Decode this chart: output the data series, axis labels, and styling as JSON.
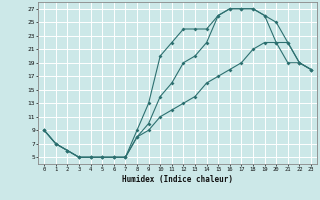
{
  "xlabel": "Humidex (Indice chaleur)",
  "bg_color": "#cce8e8",
  "line_color": "#2d7070",
  "grid_color": "#ffffff",
  "xlim": [
    -0.5,
    23.5
  ],
  "ylim": [
    4.0,
    28.0
  ],
  "xticks": [
    0,
    1,
    2,
    3,
    4,
    5,
    6,
    7,
    8,
    9,
    10,
    11,
    12,
    13,
    14,
    15,
    16,
    17,
    18,
    19,
    20,
    21,
    22,
    23
  ],
  "yticks": [
    5,
    7,
    9,
    11,
    13,
    15,
    17,
    19,
    21,
    23,
    25,
    27
  ],
  "line1_x": [
    0,
    1,
    2,
    3,
    4,
    5,
    6,
    7,
    8,
    9,
    10,
    11,
    12,
    13,
    14,
    15,
    16,
    17,
    18,
    19,
    20,
    21,
    22,
    23
  ],
  "line1_y": [
    9,
    7,
    6,
    5,
    5,
    5,
    5,
    5,
    8,
    10,
    14,
    16,
    19,
    20,
    22,
    26,
    27,
    27,
    27,
    26,
    25,
    22,
    19,
    18
  ],
  "line2_x": [
    0,
    1,
    2,
    3,
    4,
    5,
    6,
    7,
    8,
    9,
    10,
    11,
    12,
    13,
    14,
    15,
    16,
    17,
    18,
    19,
    20,
    21,
    22,
    23
  ],
  "line2_y": [
    9,
    7,
    6,
    5,
    5,
    5,
    5,
    5,
    9,
    13,
    20,
    22,
    24,
    24,
    24,
    26,
    27,
    27,
    27,
    26,
    22,
    19,
    19,
    18
  ],
  "line3_x": [
    0,
    1,
    2,
    3,
    4,
    5,
    6,
    7,
    8,
    9,
    10,
    11,
    12,
    13,
    14,
    15,
    16,
    17,
    18,
    19,
    20,
    21,
    22,
    23
  ],
  "line3_y": [
    9,
    7,
    6,
    5,
    5,
    5,
    5,
    5,
    8,
    9,
    11,
    12,
    13,
    14,
    16,
    17,
    18,
    19,
    21,
    22,
    22,
    22,
    19,
    18
  ]
}
